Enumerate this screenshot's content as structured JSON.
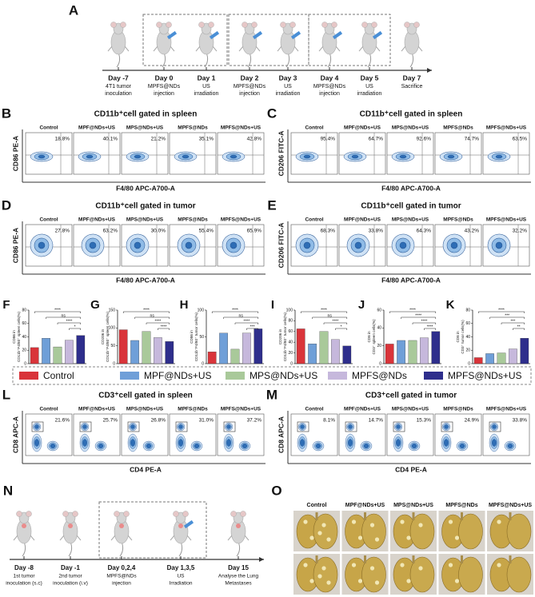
{
  "timeline_a": {
    "letter": "A",
    "events": [
      {
        "day": "Day -7",
        "label": [
          "4T1 tumor",
          "inoculation"
        ]
      },
      {
        "day": "Day 0",
        "label": [
          "MPFS@NDs",
          "injection"
        ]
      },
      {
        "day": "Day 1",
        "label": [
          "US",
          "irradiation"
        ]
      },
      {
        "day": "Day 2",
        "label": [
          "MPFS@NDs",
          "injection"
        ]
      },
      {
        "day": "Day 3",
        "label": [
          "US",
          "irradiation"
        ]
      },
      {
        "day": "Day 4",
        "label": [
          "MPFS@NDs",
          "injection"
        ]
      },
      {
        "day": "Day 5",
        "label": [
          "US",
          "irradiation"
        ]
      },
      {
        "day": "Day 7",
        "label": [
          "Sacrifice"
        ]
      }
    ]
  },
  "flow_panels": [
    {
      "letter": "B",
      "title": "CD11b⁺cell gated in spleen",
      "y_label": "CD86 PE-A",
      "x_label": "F4/80 APC-A700-A",
      "columns": [
        "Control",
        "MPF@NDs+US",
        "MPS@NDs+US",
        "MPFS@NDs",
        "MPFS@NDs+US"
      ],
      "percents": [
        "18.8%",
        "40.1%",
        "21.2%",
        "35.1%",
        "42.8%"
      ]
    },
    {
      "letter": "C",
      "title": "CD11b⁺cell gated in spleen",
      "y_label": "CD206 FITC-A",
      "x_label": "F4/80 APC-A700-A",
      "columns": [
        "Control",
        "MPF@NDs+US",
        "MPS@NDs+US",
        "MPFS@NDs",
        "MPFS@NDs+US"
      ],
      "percents": [
        "95.4%",
        "64.7%",
        "92.6%",
        "74.7%",
        "63.5%"
      ]
    },
    {
      "letter": "D",
      "title": "CD11b⁺cell gated in tumor",
      "y_label": "CD86 PE-A",
      "x_label": "F4/80 APC-A700-A",
      "columns": [
        "Control",
        "MPF@NDs+US",
        "MPS@NDs+US",
        "MPFS@NDs",
        "MPFS@NDs+US"
      ],
      "percents": [
        "27.8%",
        "63.2%",
        "30.0%",
        "55.4%",
        "65.9%"
      ]
    },
    {
      "letter": "E",
      "title": "CD11b⁺cell gated in tumor",
      "y_label": "CD206 FITC-A",
      "x_label": "F4/80 APC-A700-A",
      "columns": [
        "Control",
        "MPF@NDs+US",
        "MPS@NDs+US",
        "MPFS@NDs",
        "MPFS@NDs+US"
      ],
      "percents": [
        "68.3%",
        "33.8%",
        "64.3%",
        "43.2%",
        "32.2%"
      ]
    },
    {
      "letter": "L",
      "title": "CD3⁺cell gated in spleen",
      "y_label": "CD8 APC-A",
      "x_label": "CD4 PE-A",
      "columns": [
        "Control",
        "MPF@NDs+US",
        "MPS@NDs+US",
        "MPFS@NDs",
        "MPFS@NDs+US"
      ],
      "percents": [
        "21.6%",
        "25.7%",
        "26.8%",
        "31.0%",
        "37.2%"
      ]
    },
    {
      "letter": "M",
      "title": "CD3⁺cell gated in tumor",
      "y_label": "CD8 APC-A",
      "x_label": "CD4 PE-A",
      "columns": [
        "Control",
        "MPF@NDs+US",
        "MPS@NDs+US",
        "MPFS@NDs",
        "MPFS@NDs+US"
      ],
      "percents": [
        "8.1%",
        "14.7%",
        "15.3%",
        "24.9%",
        "33.8%"
      ]
    }
  ],
  "chart_data": [
    {
      "type": "bar",
      "letter": "F",
      "y_label": [
        "CD86 in",
        "CD11b⁺F4/80⁺ spleen cells(%)"
      ],
      "values": [
        24,
        38,
        25,
        35,
        42
      ],
      "colors": [
        "#d9343a",
        "#6f9fd8",
        "#a9c99a",
        "#c6b8dc",
        "#2e2e8c"
      ],
      "ylim": [
        0,
        80
      ],
      "yticks": [
        0,
        20,
        40,
        60,
        80
      ],
      "annotations": [
        "****",
        "ns",
        "****",
        "*"
      ]
    },
    {
      "type": "bar",
      "letter": "G",
      "y_label": [
        "CD206 in",
        "CD11b⁺F4/80⁺ spleen cells(%)"
      ],
      "values": [
        95,
        65,
        90,
        73,
        62
      ],
      "colors": [
        "#d9343a",
        "#6f9fd8",
        "#a9c99a",
        "#c6b8dc",
        "#2e2e8c"
      ],
      "ylim": [
        0,
        150
      ],
      "yticks": [
        0,
        50,
        100,
        150
      ],
      "annotations": [
        "****",
        "ns",
        "****",
        "****"
      ]
    },
    {
      "type": "bar",
      "letter": "H",
      "y_label": [
        "CD86 in",
        "CD11b⁺F4/80⁺ tumor cells(%)"
      ],
      "values": [
        22,
        57,
        27,
        57,
        65
      ],
      "colors": [
        "#d9343a",
        "#6f9fd8",
        "#a9c99a",
        "#c6b8dc",
        "#2e2e8c"
      ],
      "ylim": [
        0,
        100
      ],
      "yticks": [
        0,
        50,
        100
      ],
      "annotations": [
        "****",
        "ns",
        "****",
        "***"
      ]
    },
    {
      "type": "bar",
      "letter": "I",
      "y_label": [
        "CD206 in",
        "CD11b⁺F4/80⁺ tumor cells(%)"
      ],
      "values": [
        65,
        37,
        60,
        45,
        33
      ],
      "colors": [
        "#d9343a",
        "#6f9fd8",
        "#a9c99a",
        "#c6b8dc",
        "#2e2e8c"
      ],
      "ylim": [
        0,
        100
      ],
      "yticks": [
        0,
        20,
        40,
        60,
        80,
        100
      ],
      "annotations": [
        "****",
        "ns",
        "****",
        "*"
      ]
    },
    {
      "type": "bar",
      "letter": "J",
      "y_label": [
        "CD8 in",
        "CD3⁺ spleen cells(%)"
      ],
      "values": [
        22,
        26,
        26,
        29,
        36
      ],
      "colors": [
        "#d9343a",
        "#6f9fd8",
        "#a9c99a",
        "#c6b8dc",
        "#2e2e8c"
      ],
      "ylim": [
        0,
        60
      ],
      "yticks": [
        0,
        20,
        40,
        60
      ],
      "annotations": [
        "****",
        "****",
        "****",
        "****"
      ]
    },
    {
      "type": "bar",
      "letter": "K",
      "y_label": [
        "CD8 in",
        "CD3⁺ tumor cells(%)"
      ],
      "values": [
        9,
        15,
        16,
        22,
        38
      ],
      "colors": [
        "#d9343a",
        "#6f9fd8",
        "#a9c99a",
        "#c6b8dc",
        "#2e2e8c"
      ],
      "ylim": [
        0,
        80
      ],
      "yticks": [
        0,
        20,
        40,
        60,
        80
      ],
      "annotations": [
        "****",
        "***",
        "***",
        "**"
      ]
    }
  ],
  "legend": {
    "items": [
      {
        "name": "Control",
        "color": "#d9343a"
      },
      {
        "name": "MPF@NDs+US",
        "color": "#6f9fd8"
      },
      {
        "name": "MPS@NDs+US",
        "color": "#a9c99a"
      },
      {
        "name": "MPFS@NDs",
        "color": "#c6b8dc"
      },
      {
        "name": "MPFS@NDs+US",
        "color": "#2e2e8c"
      }
    ]
  },
  "timeline_n": {
    "letter": "N",
    "events": [
      {
        "day": "Day -8",
        "label": [
          "1st  tumor",
          "inoculation (s.c)"
        ]
      },
      {
        "day": "Day -1",
        "label": [
          "2nd tumor",
          "inoculation (i.v)"
        ]
      },
      {
        "day": "Day 0,2,4",
        "label": [
          "MPFS@NDs",
          "injection"
        ]
      },
      {
        "day": "Day 1,3,5",
        "label": [
          "US",
          "Irradiation"
        ]
      },
      {
        "day": "Day 15",
        "label": [
          "Analyse the Lung",
          "Metastases"
        ]
      }
    ]
  },
  "lung_photos": {
    "letter": "O",
    "columns": [
      "Control",
      "MPF@NDs+US",
      "MPS@NDs+US",
      "MPFS@NDs",
      "MPFS@NDs+US"
    ]
  }
}
